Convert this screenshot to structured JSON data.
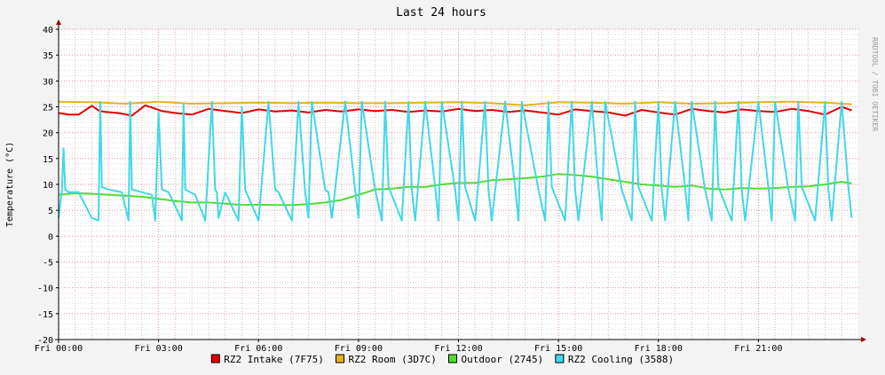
{
  "chart_data": {
    "type": "line",
    "title": "Last 24 hours",
    "ylabel": "Temperature (°C)",
    "watermark": "RRDTOOL / TOBI OETIKER",
    "ylim": [
      -20,
      40
    ],
    "yticks": [
      40,
      35,
      30,
      25,
      20,
      15,
      10,
      5,
      0,
      -5,
      -10,
      -15,
      -20
    ],
    "xlim": [
      0,
      24
    ],
    "x_unit": "hours",
    "xticks": [
      {
        "at": 0,
        "label": "Fri 00:00"
      },
      {
        "at": 3,
        "label": "Fri 03:00"
      },
      {
        "at": 6,
        "label": "Fri 06:00"
      },
      {
        "at": 9,
        "label": "Fri 09:00"
      },
      {
        "at": 12,
        "label": "Fri 12:00"
      },
      {
        "at": 15,
        "label": "Fri 15:00"
      },
      {
        "at": 18,
        "label": "Fri 18:00"
      },
      {
        "at": 21,
        "label": "Fri 21:00"
      }
    ],
    "grid": true,
    "legend_placement": "bottom",
    "series": [
      {
        "name": "RZ2 Intake (7F75)",
        "color": "#e00000",
        "x": [
          0,
          0.3,
          0.6,
          1,
          1.2,
          1.4,
          1.8,
          2.2,
          2.6,
          3.1,
          3.5,
          4.0,
          4.5,
          5.0,
          5.5,
          6.0,
          6.5,
          7.0,
          7.5,
          8.0,
          8.5,
          9.0,
          9.5,
          10.0,
          10.5,
          11.0,
          11.5,
          12.0,
          12.5,
          13.0,
          13.5,
          14.0,
          14.5,
          15.0,
          15.5,
          16.0,
          16.5,
          17.0,
          17.5,
          18.0,
          18.5,
          19.0,
          19.5,
          20.0,
          20.5,
          21.0,
          21.5,
          22.0,
          22.5,
          23.0,
          23.5,
          23.8
        ],
        "y": [
          23.8,
          23.5,
          23.5,
          25.2,
          24.3,
          24.0,
          23.8,
          23.3,
          25.3,
          24.2,
          23.8,
          23.5,
          24.6,
          24.2,
          23.8,
          24.5,
          24.1,
          24.3,
          23.9,
          24.4,
          24.1,
          24.5,
          24.2,
          24.4,
          24.0,
          24.3,
          24.1,
          24.6,
          24.2,
          24.4,
          24.0,
          24.3,
          23.9,
          23.5,
          24.5,
          24.2,
          23.9,
          23.3,
          24.4,
          23.9,
          23.5,
          24.6,
          24.2,
          23.9,
          24.5,
          24.2,
          24.0,
          24.6,
          24.2,
          23.5,
          25.0,
          24.3
        ]
      },
      {
        "name": "RZ2 Room (3D7C)",
        "color": "#e8b020",
        "x": [
          0,
          1,
          2,
          3,
          4,
          5,
          6,
          7,
          8,
          9,
          10,
          11,
          12,
          13,
          14,
          15,
          16,
          17,
          18,
          19,
          20,
          21,
          22,
          23,
          23.8
        ],
        "y": [
          26.0,
          25.9,
          25.6,
          26.0,
          25.6,
          25.7,
          25.8,
          25.7,
          25.8,
          25.7,
          25.7,
          25.8,
          25.9,
          25.7,
          25.3,
          25.9,
          25.8,
          25.6,
          25.9,
          25.6,
          25.7,
          25.9,
          26.0,
          25.8,
          25.5
        ]
      },
      {
        "name": "Outdoor (2745)",
        "color": "#50dc30",
        "x": [
          0,
          0.5,
          1,
          1.5,
          2,
          2.5,
          3,
          3.5,
          4,
          4.5,
          5,
          5.5,
          6,
          6.5,
          7,
          7.5,
          8,
          8.5,
          9,
          9.5,
          10,
          10.5,
          11,
          11.5,
          12,
          12.5,
          13,
          13.5,
          14,
          14.5,
          15,
          15.5,
          16,
          16.5,
          17,
          17.5,
          18,
          18.5,
          19,
          19.5,
          20,
          20.5,
          21,
          21.5,
          22,
          22.5,
          23,
          23.5,
          23.8
        ],
        "y": [
          8.0,
          8.3,
          8.2,
          8.0,
          7.8,
          7.6,
          7.2,
          6.8,
          6.5,
          6.5,
          6.3,
          6.0,
          6.1,
          6.0,
          6.0,
          6.2,
          6.5,
          7.0,
          8.0,
          9.0,
          9.2,
          9.5,
          9.5,
          10.0,
          10.3,
          10.3,
          10.8,
          11.0,
          11.2,
          11.5,
          12.0,
          11.8,
          11.5,
          11.0,
          10.5,
          10.0,
          9.8,
          9.5,
          9.8,
          9.2,
          9.0,
          9.3,
          9.2,
          9.3,
          9.5,
          9.6,
          10.0,
          10.5,
          10.2
        ]
      },
      {
        "name": "RZ2 Cooling (3588)",
        "color": "#40d8e8",
        "x": [
          0,
          0.1,
          0.15,
          0.2,
          0.3,
          0.6,
          1.0,
          1.2,
          1.25,
          1.3,
          1.5,
          1.9,
          2.1,
          2.15,
          2.2,
          2.5,
          2.8,
          2.9,
          3.0,
          3.1,
          3.3,
          3.7,
          3.75,
          3.8,
          4.1,
          4.4,
          4.6,
          4.7,
          4.75,
          4.8,
          5.0,
          5.4,
          5.5,
          5.6,
          6.0,
          6.3,
          6.5,
          6.6,
          7.0,
          7.2,
          7.4,
          7.5,
          7.6,
          8.0,
          8.1,
          8.2,
          8.6,
          8.9,
          9.0,
          9.1,
          9.5,
          9.7,
          9.8,
          9.9,
          10.3,
          10.5,
          10.6,
          10.7,
          11.0,
          11.3,
          11.4,
          11.5,
          11.9,
          12.0,
          12.1,
          12.2,
          12.5,
          12.8,
          12.9,
          13.0,
          13.4,
          13.7,
          13.8,
          13.9,
          14.4,
          14.6,
          14.7,
          14.8,
          15.2,
          15.4,
          15.5,
          15.6,
          16.0,
          16.2,
          16.3,
          16.4,
          16.9,
          17.2,
          17.3,
          17.4,
          17.8,
          18.0,
          18.1,
          18.2,
          18.5,
          18.8,
          18.9,
          19.0,
          19.4,
          19.6,
          19.7,
          19.8,
          20.2,
          20.4,
          20.5,
          20.6,
          21.0,
          21.3,
          21.4,
          21.5,
          21.9,
          22.1,
          22.2,
          22.3,
          22.7,
          23.0,
          23.1,
          23.2,
          23.5,
          23.7,
          23.8
        ],
        "y": [
          3.5,
          9.0,
          17.0,
          9.0,
          8.5,
          8.5,
          3.5,
          3.0,
          26.0,
          9.5,
          9.0,
          8.5,
          3.0,
          26.0,
          9.0,
          8.5,
          8.0,
          3.0,
          24.0,
          9.0,
          8.5,
          3.0,
          25.5,
          9.0,
          8.0,
          3.0,
          26.0,
          9.0,
          8.5,
          3.5,
          8.5,
          3.0,
          25.0,
          9.0,
          3.0,
          26.0,
          9.0,
          8.5,
          3.0,
          26.0,
          8.5,
          3.5,
          26.0,
          9.0,
          8.5,
          3.5,
          26.0,
          9.0,
          3.5,
          26.0,
          9.0,
          3.0,
          26.0,
          9.5,
          3.0,
          26.0,
          9.0,
          3.0,
          26.0,
          9.5,
          3.0,
          26.0,
          9.0,
          3.0,
          26.0,
          9.5,
          3.0,
          26.0,
          9.0,
          3.0,
          26.0,
          9.5,
          3.0,
          26.0,
          9.0,
          3.0,
          26.0,
          9.5,
          3.0,
          26.0,
          9.0,
          3.0,
          26.0,
          9.5,
          3.0,
          26.0,
          9.0,
          3.0,
          26.0,
          9.5,
          3.0,
          26.0,
          9.0,
          3.0,
          26.0,
          9.5,
          3.0,
          26.0,
          9.0,
          3.0,
          26.0,
          9.5,
          3.0,
          26.0,
          9.0,
          3.0,
          26.0,
          9.5,
          3.0,
          26.0,
          9.0,
          3.0,
          26.0,
          9.5,
          3.0,
          26.0,
          9.0,
          3.0,
          26.0,
          9.5,
          3.5
        ]
      }
    ]
  }
}
